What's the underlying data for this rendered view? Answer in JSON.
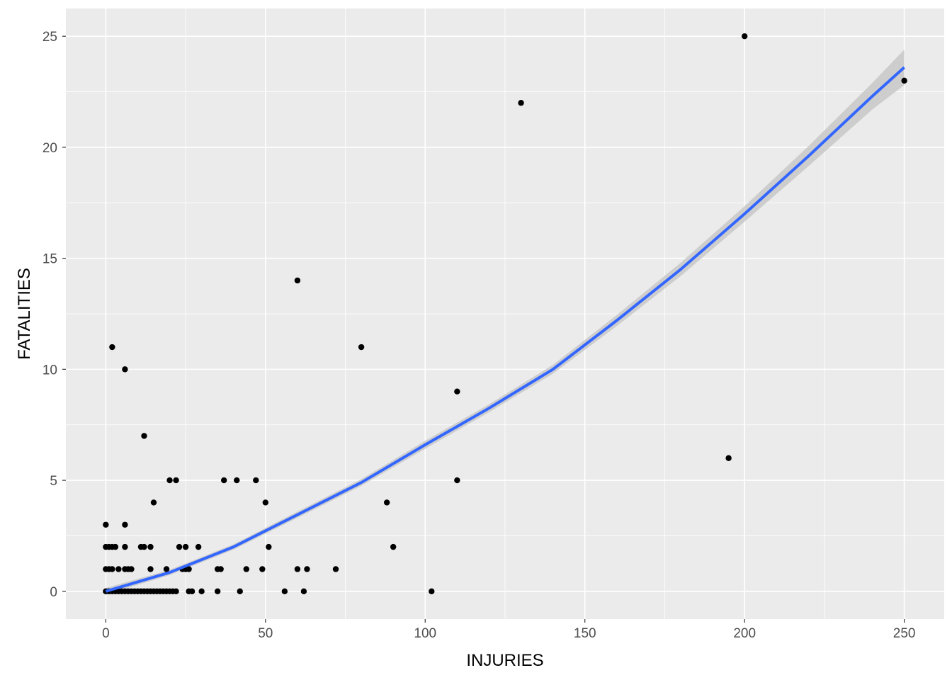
{
  "chart_data": {
    "type": "scatter",
    "xlabel": "INJURIES",
    "ylabel": "FATALITIES",
    "xlim": [
      -12.5,
      262.5
    ],
    "ylim": [
      -1.25,
      26.25
    ],
    "xticks": [
      0,
      50,
      100,
      150,
      200,
      250
    ],
    "yticks": [
      0,
      5,
      10,
      15,
      20,
      25
    ],
    "grid": true,
    "colors": {
      "panel": "#ebebeb",
      "grid": "#ffffff",
      "points": "#000000",
      "smooth_line": "#3366ff",
      "confidence_band": "#c8c8c8"
    },
    "points": [
      [
        0,
        0
      ],
      [
        0,
        1
      ],
      [
        0,
        2
      ],
      [
        0,
        3
      ],
      [
        1,
        0
      ],
      [
        1,
        1
      ],
      [
        1,
        2
      ],
      [
        2,
        0
      ],
      [
        2,
        1
      ],
      [
        2,
        2
      ],
      [
        2,
        11
      ],
      [
        3,
        0
      ],
      [
        3,
        2
      ],
      [
        4,
        0
      ],
      [
        4,
        1
      ],
      [
        5,
        0
      ],
      [
        6,
        0
      ],
      [
        6,
        1
      ],
      [
        6,
        2
      ],
      [
        6,
        3
      ],
      [
        6,
        10
      ],
      [
        7,
        0
      ],
      [
        7,
        1
      ],
      [
        8,
        0
      ],
      [
        8,
        1
      ],
      [
        9,
        0
      ],
      [
        10,
        0
      ],
      [
        11,
        0
      ],
      [
        11,
        2
      ],
      [
        12,
        0
      ],
      [
        12,
        2
      ],
      [
        12,
        7
      ],
      [
        13,
        0
      ],
      [
        14,
        0
      ],
      [
        14,
        1
      ],
      [
        14,
        2
      ],
      [
        15,
        0
      ],
      [
        15,
        4
      ],
      [
        16,
        0
      ],
      [
        17,
        0
      ],
      [
        18,
        0
      ],
      [
        19,
        0
      ],
      [
        19,
        1
      ],
      [
        20,
        0
      ],
      [
        20,
        5
      ],
      [
        21,
        0
      ],
      [
        22,
        0
      ],
      [
        22,
        5
      ],
      [
        23,
        2
      ],
      [
        24,
        1
      ],
      [
        25,
        1
      ],
      [
        25,
        2
      ],
      [
        26,
        0
      ],
      [
        26,
        1
      ],
      [
        27,
        0
      ],
      [
        29,
        2
      ],
      [
        30,
        0
      ],
      [
        35,
        0
      ],
      [
        35,
        1
      ],
      [
        36,
        1
      ],
      [
        37,
        5
      ],
      [
        41,
        5
      ],
      [
        42,
        0
      ],
      [
        44,
        1
      ],
      [
        47,
        5
      ],
      [
        49,
        1
      ],
      [
        50,
        4
      ],
      [
        51,
        2
      ],
      [
        56,
        0
      ],
      [
        60,
        1
      ],
      [
        60,
        14
      ],
      [
        62,
        0
      ],
      [
        63,
        1
      ],
      [
        72,
        1
      ],
      [
        80,
        11
      ],
      [
        88,
        4
      ],
      [
        90,
        2
      ],
      [
        102,
        0
      ],
      [
        110,
        5
      ],
      [
        110,
        9
      ],
      [
        130,
        22
      ],
      [
        195,
        6
      ],
      [
        200,
        25
      ],
      [
        250,
        23
      ]
    ],
    "smooth": {
      "method": "loess",
      "x": [
        0,
        20,
        40,
        60,
        80,
        100,
        120,
        140,
        160,
        180,
        200,
        220,
        240,
        250
      ],
      "y": [
        0,
        0.85,
        2.0,
        3.45,
        4.9,
        6.6,
        8.25,
        10.0,
        12.2,
        14.5,
        17.0,
        19.6,
        22.3,
        23.6
      ],
      "band_halfwidth": [
        0.15,
        0.12,
        0.12,
        0.14,
        0.15,
        0.18,
        0.18,
        0.2,
        0.25,
        0.3,
        0.35,
        0.45,
        0.6,
        0.8
      ]
    }
  }
}
